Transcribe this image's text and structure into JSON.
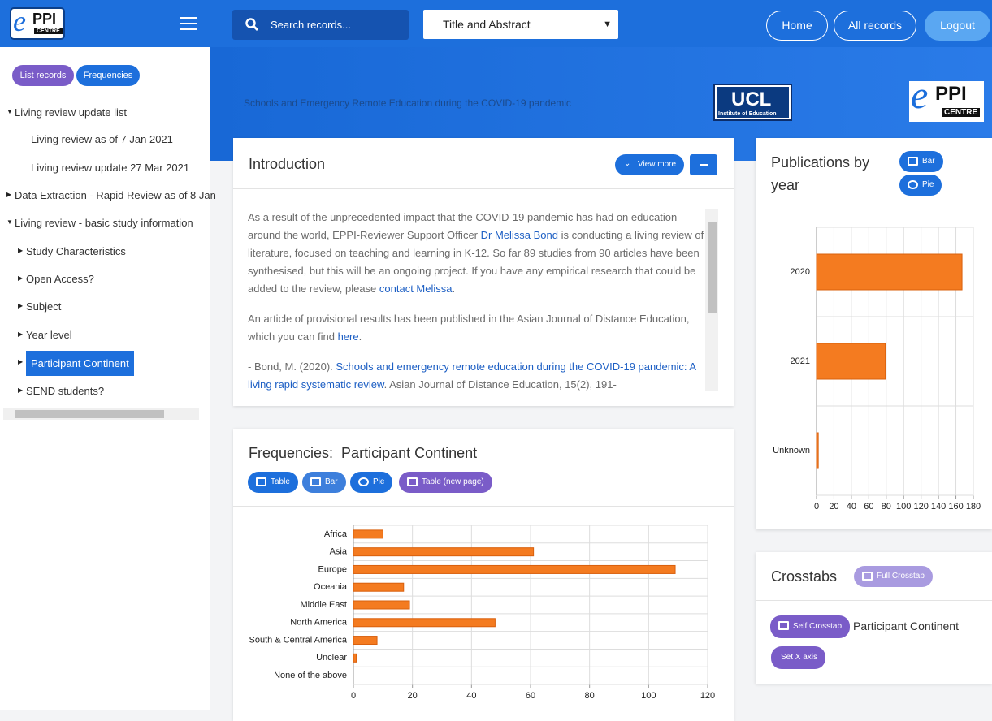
{
  "logos": {
    "eppi_e": "e",
    "eppi": "PPI",
    "eppi_sub": "CENTRE",
    "ucl": "UCL",
    "ucl_sub": "Institute of Education"
  },
  "header": {
    "search_placeholder": "Search records...",
    "field_select": "Title and Abstract",
    "nav": [
      "Home",
      "All records",
      "Logout"
    ]
  },
  "sidebar": {
    "buttons": [
      "List records",
      "Frequencies"
    ],
    "tree": [
      "Living review update list",
      "Living review as of 7 Jan 2021",
      "Living review update 27 Mar 2021",
      "Data Extraction - Rapid Review as of 8 Jan",
      "Living review - basic study information",
      "Study Characteristics",
      "Open Access?",
      "Subject",
      "Year level",
      "Participant Continent",
      "SEND students?"
    ]
  },
  "banner": {
    "title": "Schools and Emergency Remote Education during the COVID-19 pandemic"
  },
  "introduction": {
    "title": "Introduction",
    "view_more": "View more",
    "paragraphs": [
      [
        {
          "text": "As a result of the unprecedented impact that the COVID-19 pandemic has had on education around the world, EPPI-Reviewer Support Officer ",
          "link": false
        },
        {
          "text": "Dr Melissa Bond",
          "link": true
        },
        {
          "text": " is conducting a living review of literature, focused on teaching and learning in K-12. So far 89 studies from 90 articles have been synthesised, but this will be an ongoing project. If you have any empirical research that could be added to the review, please ",
          "link": false
        },
        {
          "text": "contact Melissa",
          "link": true
        },
        {
          "text": ".",
          "link": false
        }
      ],
      [
        {
          "text": "An article of provisional results has been published in the Asian Journal of Distance Education, which you can find ",
          "link": false
        },
        {
          "text": "here",
          "link": true
        },
        {
          "text": ".",
          "link": false
        }
      ],
      [
        {
          "text": " - Bond, M. (2020). ",
          "link": false
        },
        {
          "text": "Schools and emergency remote education during the COVID-19 pandemic: A living rapid systematic review",
          "link": true
        },
        {
          "text": ". Asian Journal of Distance Education, 15(2), 191-",
          "link": false
        }
      ]
    ]
  },
  "frequencies": {
    "title": "Frequencies:  Participant Continent",
    "buttons": [
      "Table",
      "Bar",
      "Pie",
      "Table (new page)"
    ]
  },
  "publications": {
    "title": "Publications by year",
    "buttons": [
      "Bar",
      "Pie"
    ]
  },
  "crosstabs": {
    "title": "Crosstabs",
    "full": "Full Crosstab",
    "self": "Self Crosstab",
    "label": "Participant Continent",
    "set_x": "Set X axis"
  },
  "chart_data": [
    {
      "type": "hbar",
      "categories": [
        "Africa",
        "Asia",
        "Europe",
        "Oceania",
        "Middle East",
        "North America",
        "South & Central America",
        "Unclear",
        "None of the above"
      ],
      "values": [
        10,
        61,
        109,
        17,
        19,
        48,
        8,
        1,
        0
      ],
      "color": "#f47b20",
      "xlim": [
        0,
        120
      ],
      "xticks": [
        0,
        20,
        40,
        60,
        80,
        100,
        120
      ],
      "grid": true
    },
    {
      "type": "hbar",
      "categories": [
        "2020",
        "2021",
        "Unknown"
      ],
      "values": [
        167,
        79,
        2
      ],
      "color": "#f47b20",
      "xlim": [
        0,
        180
      ],
      "xticks": [
        0,
        20,
        40,
        60,
        80,
        100,
        120,
        140,
        160,
        180
      ],
      "grid": true
    }
  ]
}
